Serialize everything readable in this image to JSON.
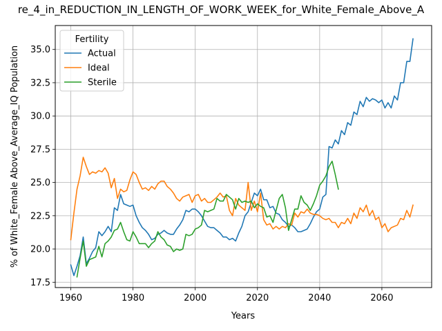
{
  "chart_data": {
    "type": "line",
    "title": "re_4_in_REDUCTION_IN_LENGTH_OF_WORK_WEEK_for_White_Female_Above_A",
    "xlabel": "Years",
    "ylabel": "% of White_Female Above_Average_IQ Population",
    "xlim": [
      1955,
      2076
    ],
    "ylim": [
      17.1,
      36.8
    ],
    "xticks": [
      1960,
      1980,
      2000,
      2020,
      2040,
      2060
    ],
    "yticks": [
      17.5,
      20.0,
      22.5,
      25.0,
      27.5,
      30.0,
      32.5,
      35.0
    ],
    "ytick_labels": [
      "17.5",
      "20.0",
      "22.5",
      "25.0",
      "27.5",
      "30.0",
      "32.5",
      "35.0"
    ],
    "grid": true,
    "legend": {
      "title": "Fertility",
      "position": "top-left"
    },
    "series": [
      {
        "name": "Actual",
        "color": "#1f77b4",
        "x": [
          1960,
          1961,
          1962,
          1963,
          1964,
          1965,
          1966,
          1967,
          1968,
          1969,
          1970,
          1971,
          1972,
          1973,
          1974,
          1975,
          1976,
          1977,
          1978,
          1979,
          1980,
          1981,
          1982,
          1983,
          1984,
          1985,
          1986,
          1987,
          1988,
          1989,
          1990,
          1991,
          1992,
          1993,
          1994,
          1995,
          1996,
          1997,
          1998,
          1999,
          2000,
          2001,
          2002,
          2003,
          2004,
          2005,
          2006,
          2007,
          2008,
          2009,
          2010,
          2011,
          2012,
          2013,
          2014,
          2015,
          2016,
          2017,
          2018,
          2019,
          2020,
          2021,
          2022,
          2023,
          2024,
          2025,
          2026,
          2027,
          2028,
          2029,
          2030,
          2031,
          2032,
          2033,
          2034,
          2035,
          2036,
          2037,
          2038,
          2039,
          2040,
          2041,
          2042,
          2043,
          2044,
          2045,
          2046,
          2047,
          2048,
          2049,
          2050,
          2051,
          2052,
          2053,
          2054,
          2055,
          2056,
          2057,
          2058,
          2059,
          2060,
          2061,
          2062,
          2063,
          2064,
          2065,
          2066,
          2067,
          2068,
          2069,
          2070
        ],
        "values": [
          18.8,
          18.0,
          18.7,
          19.5,
          20.9,
          18.9,
          19.3,
          19.8,
          20.1,
          21.3,
          21.0,
          21.3,
          21.7,
          21.3,
          23.1,
          22.9,
          24.1,
          23.4,
          23.3,
          23.2,
          23.3,
          22.5,
          22.0,
          21.6,
          21.4,
          21.1,
          20.7,
          20.8,
          21.1,
          21.2,
          21.4,
          21.2,
          21.1,
          21.1,
          21.5,
          21.8,
          22.2,
          22.9,
          22.8,
          23.0,
          23.0,
          22.8,
          22.5,
          22.1,
          21.7,
          21.6,
          21.6,
          21.4,
          21.2,
          20.9,
          20.9,
          20.7,
          20.8,
          20.6,
          21.2,
          21.7,
          22.5,
          22.8,
          23.5,
          24.2,
          24.0,
          24.5,
          23.7,
          23.7,
          23.1,
          23.2,
          22.7,
          22.6,
          22.2,
          22.0,
          21.7,
          21.8,
          21.6,
          21.3,
          21.3,
          21.4,
          21.5,
          21.9,
          22.4,
          22.8,
          23.0,
          23.9,
          24.1,
          27.7,
          27.6,
          28.2,
          27.9,
          28.9,
          28.6,
          29.5,
          29.3,
          30.3,
          30.1,
          31.1,
          30.7,
          31.4,
          31.1,
          31.3,
          31.2,
          31.0,
          31.2,
          30.6,
          31.0,
          30.6,
          31.5,
          31.2,
          32.5,
          32.5,
          34.1,
          34.1,
          35.8
        ]
      },
      {
        "name": "Ideal",
        "color": "#ff7f0e",
        "x": [
          1960,
          1961,
          1962,
          1963,
          1964,
          1965,
          1966,
          1967,
          1968,
          1969,
          1970,
          1971,
          1972,
          1973,
          1974,
          1975,
          1976,
          1977,
          1978,
          1979,
          1980,
          1981,
          1982,
          1983,
          1984,
          1985,
          1986,
          1987,
          1988,
          1989,
          1990,
          1991,
          1992,
          1993,
          1994,
          1995,
          1996,
          1997,
          1998,
          1999,
          2000,
          2001,
          2002,
          2003,
          2004,
          2005,
          2006,
          2007,
          2008,
          2009,
          2010,
          2011,
          2012,
          2013,
          2014,
          2015,
          2016,
          2017,
          2018,
          2019,
          2020,
          2021,
          2022,
          2023,
          2024,
          2025,
          2026,
          2027,
          2028,
          2029,
          2030,
          2031,
          2032,
          2033,
          2034,
          2035,
          2036,
          2037,
          2038,
          2039,
          2040,
          2041,
          2042,
          2043,
          2044,
          2045,
          2046,
          2047,
          2048,
          2049,
          2050,
          2051,
          2052,
          2053,
          2054,
          2055,
          2056,
          2057,
          2058,
          2059,
          2060,
          2061,
          2062,
          2063,
          2064,
          2065,
          2066,
          2067,
          2068,
          2069,
          2070
        ],
        "values": [
          20.7,
          22.7,
          24.5,
          25.5,
          26.9,
          26.2,
          25.6,
          25.8,
          25.7,
          25.9,
          25.8,
          26.1,
          25.7,
          24.6,
          25.3,
          23.8,
          24.5,
          24.3,
          24.4,
          25.2,
          25.8,
          25.6,
          25.0,
          24.5,
          24.6,
          24.4,
          24.7,
          24.5,
          24.9,
          25.1,
          25.1,
          24.7,
          24.5,
          24.2,
          23.8,
          23.6,
          23.9,
          24.0,
          24.1,
          23.5,
          24.0,
          24.1,
          23.6,
          23.8,
          23.5,
          23.5,
          23.7,
          23.9,
          24.2,
          23.9,
          24.0,
          22.9,
          22.5,
          23.8,
          23.3,
          23.1,
          22.9,
          25.0,
          22.9,
          23.6,
          22.8,
          24.2,
          22.2,
          21.8,
          21.9,
          21.5,
          21.7,
          21.5,
          21.7,
          21.6,
          21.9,
          21.8,
          22.7,
          22.4,
          22.8,
          22.7,
          23.0,
          22.7,
          22.6,
          22.6,
          22.5,
          22.3,
          22.2,
          22.3,
          22.0,
          22.0,
          21.6,
          22.0,
          21.9,
          22.3,
          21.9,
          22.7,
          22.3,
          23.1,
          22.8,
          23.3,
          22.5,
          22.9,
          22.2,
          22.4,
          21.6,
          21.9,
          21.3,
          21.6,
          21.7,
          21.8,
          22.3,
          22.2,
          22.9,
          22.4,
          23.3
        ]
      },
      {
        "name": "Sterile",
        "color": "#2ca02c",
        "x": [
          1962,
          1963,
          1964,
          1965,
          1966,
          1967,
          1968,
          1969,
          1970,
          1971,
          1972,
          1973,
          1974,
          1975,
          1976,
          1977,
          1978,
          1979,
          1980,
          1981,
          1982,
          1983,
          1984,
          1985,
          1986,
          1987,
          1988,
          1989,
          1990,
          1991,
          1992,
          1993,
          1994,
          1995,
          1996,
          1997,
          1998,
          1999,
          2000,
          2001,
          2002,
          2003,
          2004,
          2005,
          2006,
          2007,
          2008,
          2009,
          2010,
          2011,
          2012,
          2013,
          2014,
          2015,
          2016,
          2017,
          2018,
          2019,
          2020,
          2021,
          2022,
          2023,
          2024,
          2025,
          2026,
          2027,
          2028,
          2029,
          2030,
          2031,
          2032,
          2033,
          2034,
          2035,
          2036,
          2037,
          2038,
          2039,
          2040,
          2041,
          2042,
          2043,
          2044,
          2045,
          2046
        ],
        "values": [
          17.9,
          19.3,
          20.6,
          18.7,
          19.2,
          19.3,
          19.4,
          20.2,
          19.4,
          20.4,
          20.6,
          20.9,
          21.4,
          21.5,
          22.0,
          21.3,
          20.7,
          20.6,
          21.3,
          20.9,
          20.4,
          20.4,
          20.4,
          20.1,
          20.4,
          20.6,
          21.3,
          20.9,
          20.7,
          20.3,
          20.2,
          19.8,
          20.0,
          19.9,
          20.0,
          21.1,
          21.0,
          21.1,
          21.5,
          21.6,
          21.8,
          22.9,
          22.8,
          22.9,
          23.0,
          23.8,
          23.6,
          23.6,
          24.1,
          23.9,
          23.7,
          23.0,
          23.8,
          23.5,
          23.6,
          23.5,
          23.6,
          23.1,
          23.4,
          23.2,
          23.1,
          22.4,
          22.5,
          22.0,
          22.9,
          23.8,
          24.1,
          23.1,
          21.4,
          22.2,
          23.0,
          23.0,
          24.0,
          23.5,
          23.3,
          22.9,
          23.4,
          24.0,
          24.8,
          25.1,
          25.5,
          26.2,
          26.6,
          25.6,
          24.5
        ]
      }
    ]
  }
}
